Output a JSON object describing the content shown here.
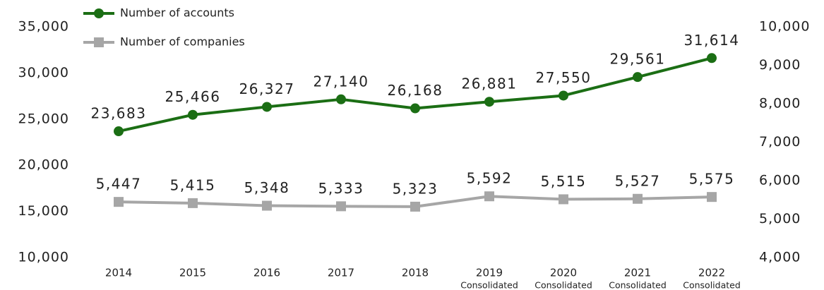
{
  "chart_data": {
    "type": "line",
    "categories": [
      "2014",
      "2015",
      "2016",
      "2017",
      "2018",
      "2019",
      "2020",
      "2021",
      "2022"
    ],
    "category_notes": [
      null,
      null,
      null,
      null,
      null,
      "Consolidated",
      "Consolidated",
      "Consolidated",
      "Consolidated"
    ],
    "series": [
      {
        "name": "Number of accounts",
        "color": "#1b6e14",
        "marker": "circle",
        "values": [
          23683,
          25466,
          26327,
          27140,
          26168,
          26881,
          27550,
          29561,
          31614
        ],
        "value_labels": [
          "23,683",
          "25,466",
          "26,327",
          "27,140",
          "26,168",
          "26,881",
          "27,550",
          "29,561",
          "31,614"
        ]
      },
      {
        "name": "Number of companies",
        "color": "#a6a6a6",
        "marker": "square",
        "axis": "y2",
        "values": [
          5447,
          5415,
          5348,
          5333,
          5323,
          5592,
          5515,
          5527,
          5575
        ],
        "value_labels": [
          "5,447",
          "5,415",
          "5,348",
          "5,333",
          "5,323",
          "5,592",
          "5,515",
          "5,527",
          "5,575"
        ]
      }
    ],
    "ylim": [
      10000,
      35000
    ],
    "yticks": [
      {
        "value": 10000,
        "label": "10,000"
      },
      {
        "value": 15000,
        "label": "15,000"
      },
      {
        "value": 20000,
        "label": "20,000"
      },
      {
        "value": 25000,
        "label": "25,000"
      },
      {
        "value": 30000,
        "label": "30,000"
      },
      {
        "value": 35000,
        "label": "35,000"
      }
    ],
    "y2lim": [
      4000,
      10000
    ],
    "y2ticks": [
      {
        "value": 4000,
        "label": "4,000"
      },
      {
        "value": 5000,
        "label": "5,000"
      },
      {
        "value": 6000,
        "label": "6,000"
      },
      {
        "value": 7000,
        "label": "7,000"
      },
      {
        "value": 8000,
        "label": "8,000"
      },
      {
        "value": 9000,
        "label": "9,000"
      },
      {
        "value": 10000,
        "label": "10,000"
      }
    ],
    "legend": "top-left"
  }
}
